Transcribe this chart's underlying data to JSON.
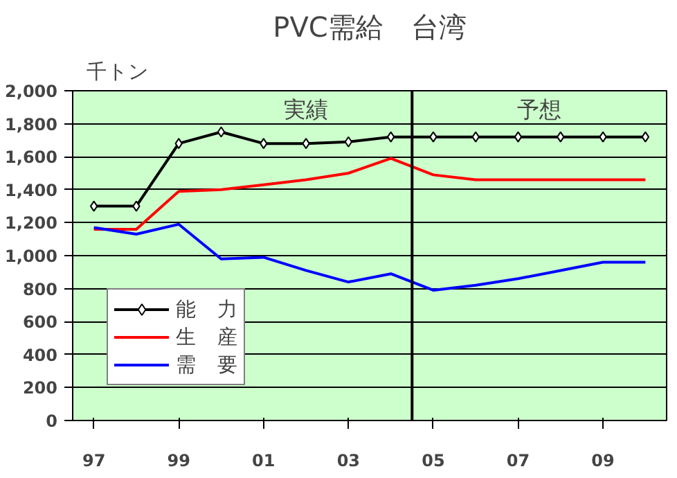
{
  "chart_data": {
    "type": "line",
    "title": "PVC需給　台湾",
    "ylabel": "千トン",
    "x": [
      1997,
      1998,
      1999,
      2000,
      2001,
      2002,
      2003,
      2004,
      2005,
      2006,
      2007,
      2008,
      2009,
      2010
    ],
    "xlim": [
      1996.5,
      2010.5
    ],
    "xticks": [
      {
        "value": 1997,
        "label": "97"
      },
      {
        "value": 1999,
        "label": "99"
      },
      {
        "value": 2001,
        "label": "01"
      },
      {
        "value": 2003,
        "label": "03"
      },
      {
        "value": 2005,
        "label": "05"
      },
      {
        "value": 2007,
        "label": "07"
      },
      {
        "value": 2009,
        "label": "09"
      }
    ],
    "ylim": [
      0,
      2000
    ],
    "yticks": [
      {
        "value": 0,
        "label": "0"
      },
      {
        "value": 200,
        "label": "200"
      },
      {
        "value": 400,
        "label": "400"
      },
      {
        "value": 600,
        "label": "600"
      },
      {
        "value": 800,
        "label": "800"
      },
      {
        "value": 1000,
        "label": "1,000"
      },
      {
        "value": 1200,
        "label": "1,200"
      },
      {
        "value": 1400,
        "label": "1,400"
      },
      {
        "value": 1600,
        "label": "1,600"
      },
      {
        "value": 1800,
        "label": "1,800"
      },
      {
        "value": 2000,
        "label": "2,000"
      }
    ],
    "series": [
      {
        "name": "能　力",
        "color": "#000000",
        "marker": "diamond",
        "values": [
          1300,
          1300,
          1680,
          1750,
          1680,
          1680,
          1690,
          1720,
          1720,
          1720,
          1720,
          1720,
          1720,
          1720
        ]
      },
      {
        "name": "生　産",
        "color": "#ff0000",
        "marker": "none",
        "values": [
          1160,
          1160,
          1390,
          1400,
          1430,
          1460,
          1500,
          1590,
          1490,
          1460,
          1460,
          1460,
          1460,
          1460
        ]
      },
      {
        "name": "需　要",
        "color": "#0000ff",
        "marker": "none",
        "values": [
          1170,
          1130,
          1190,
          980,
          990,
          910,
          840,
          890,
          790,
          820,
          860,
          910,
          960,
          960
        ]
      }
    ],
    "ref_lines": [
      {
        "axis": "x",
        "value": 2004.5,
        "color": "#000000"
      }
    ],
    "annotations": [
      "実績",
      "予想"
    ],
    "grid": "y",
    "legend": "bottom left"
  }
}
